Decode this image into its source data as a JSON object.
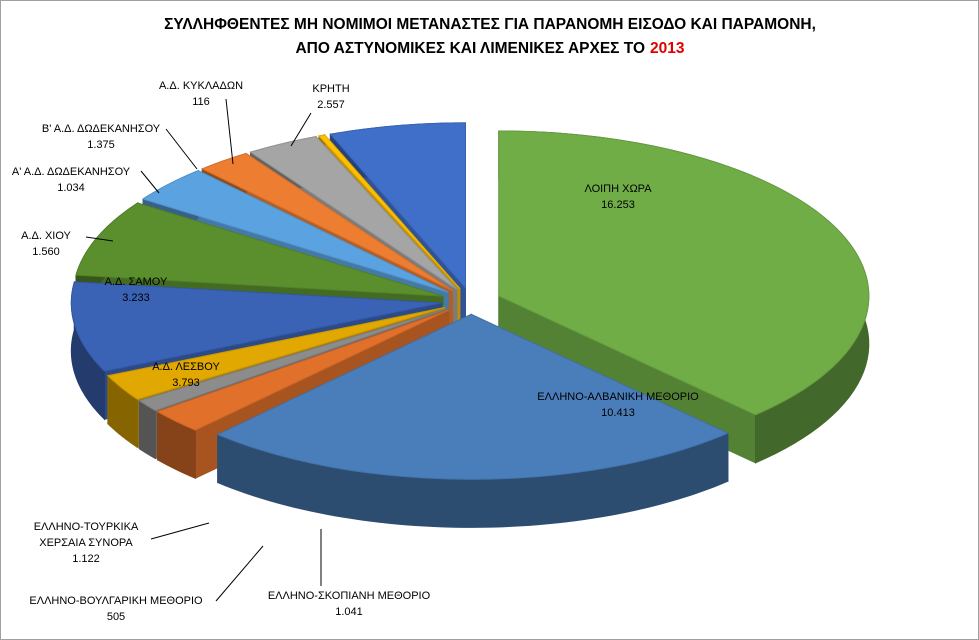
{
  "chart_data": {
    "type": "pie",
    "title": [
      "ΣΥΛΛΗΦΘΕΝΤΕΣ ΜΗ ΝΟΜΙΜΟΙ ΜΕΤΑΝΑΣΤΕΣ ΓΙΑ ΠΑΡΑΝΟΜΗ ΕΙΣΟΔΟ ΚΑΙ ΠΑΡΑΜΟΝΗ,",
      "ΑΠΟ ΑΣΤΥΝΟΜΙΚΕΣ ΚΑΙ ΛΙΜΕΝΙΚΕΣ ΑΡΧΕΣ ΤΟ"
    ],
    "title_highlight": "2013",
    "title_highlight_color": "#e00000",
    "categories": [
      "ΛΟΙΠΗ ΧΩΡΑ",
      "ΕΛΛΗΝΟ-ΑΛΒΑΝΙΚΗ ΜΕΘΟΡΙΟ",
      "ΕΛΛΗΝΟ-ΣΚΟΠΙΑΝΗ ΜΕΘΟΡΙΟ",
      "ΕΛΛΗΝΟ-ΒΟΥΛΓΑΡΙΚΗ ΜΕΘΟΡΙΟ",
      "ΕΛΛΗΝΟ-ΤΟΥΡΚΙΚΑ ΧΕΡΣΑΙΑ ΣΥΝΟΡΑ",
      "Α.Δ. ΛΕΣΒΟΥ",
      "Α.Δ. ΣΑΜΟΥ",
      "Α.Δ. ΧΙΟΥ",
      "Α' Α.Δ. ΔΩΔΕΚΑΝΗΣΟΥ",
      "Β' Α.Δ. ΔΩΔΕΚΑΝΗΣΟΥ",
      "Α.Δ. ΚΥΚΛΑΔΩΝ",
      "ΚΡΗΤΗ"
    ],
    "values": [
      16253,
      10413,
      1041,
      505,
      1122,
      3793,
      3233,
      1560,
      1034,
      1375,
      116,
      2557
    ],
    "value_labels": [
      "16.253",
      "10.413",
      "1.041",
      "505",
      "1.122",
      "3.793",
      "3.233",
      "1.560",
      "1.034",
      "1.375",
      "116",
      "2.557"
    ],
    "colors": [
      "#70ad47",
      "#4a7ebb",
      "#e0702a",
      "#8c8c8c",
      "#e0a800",
      "#3a62b5",
      "#5b8f2d",
      "#5ba3e0",
      "#ed7d31",
      "#a5a5a5",
      "#ffc000",
      "#3f6fc8"
    ]
  }
}
